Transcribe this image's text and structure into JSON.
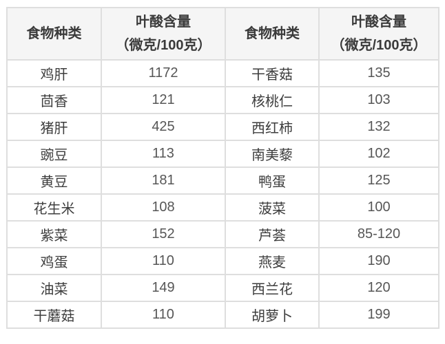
{
  "header": {
    "col1": "食物种类",
    "col2_line1": "叶酸含量",
    "col2_line2": "（微克/100克）",
    "col3": "食物种类",
    "col4_line1": "叶酸含量",
    "col4_line2": "（微克/100克）"
  },
  "chart_data": {
    "type": "table",
    "columns": [
      "食物种类",
      "叶酸含量（微克/100克）",
      "食物种类",
      "叶酸含量（微克/100克）"
    ],
    "rows": [
      [
        "鸡肝",
        "1172",
        "干香菇",
        "135"
      ],
      [
        "茴香",
        "121",
        "核桃仁",
        "103"
      ],
      [
        "猪肝",
        "425",
        "西红柿",
        "132"
      ],
      [
        "豌豆",
        "113",
        "南美藜",
        "102"
      ],
      [
        "黄豆",
        "181",
        "鸭蛋",
        "125"
      ],
      [
        "花生米",
        "108",
        "菠菜",
        "100"
      ],
      [
        "紫菜",
        "152",
        "芦荟",
        "85-120"
      ],
      [
        "鸡蛋",
        "110",
        "燕麦",
        "190"
      ],
      [
        "油菜",
        "149",
        "西兰花",
        "120"
      ],
      [
        "干蘑菇",
        "110",
        "胡萝卜",
        "199"
      ]
    ],
    "units": "微克/100克",
    "legend_position": "none",
    "grid": true
  },
  "colors": {
    "header_bg": "#f5f5f5",
    "border": "#dedede",
    "food_text": "#3d3d3d",
    "value_text": "#565656",
    "background": "#ffffff"
  }
}
